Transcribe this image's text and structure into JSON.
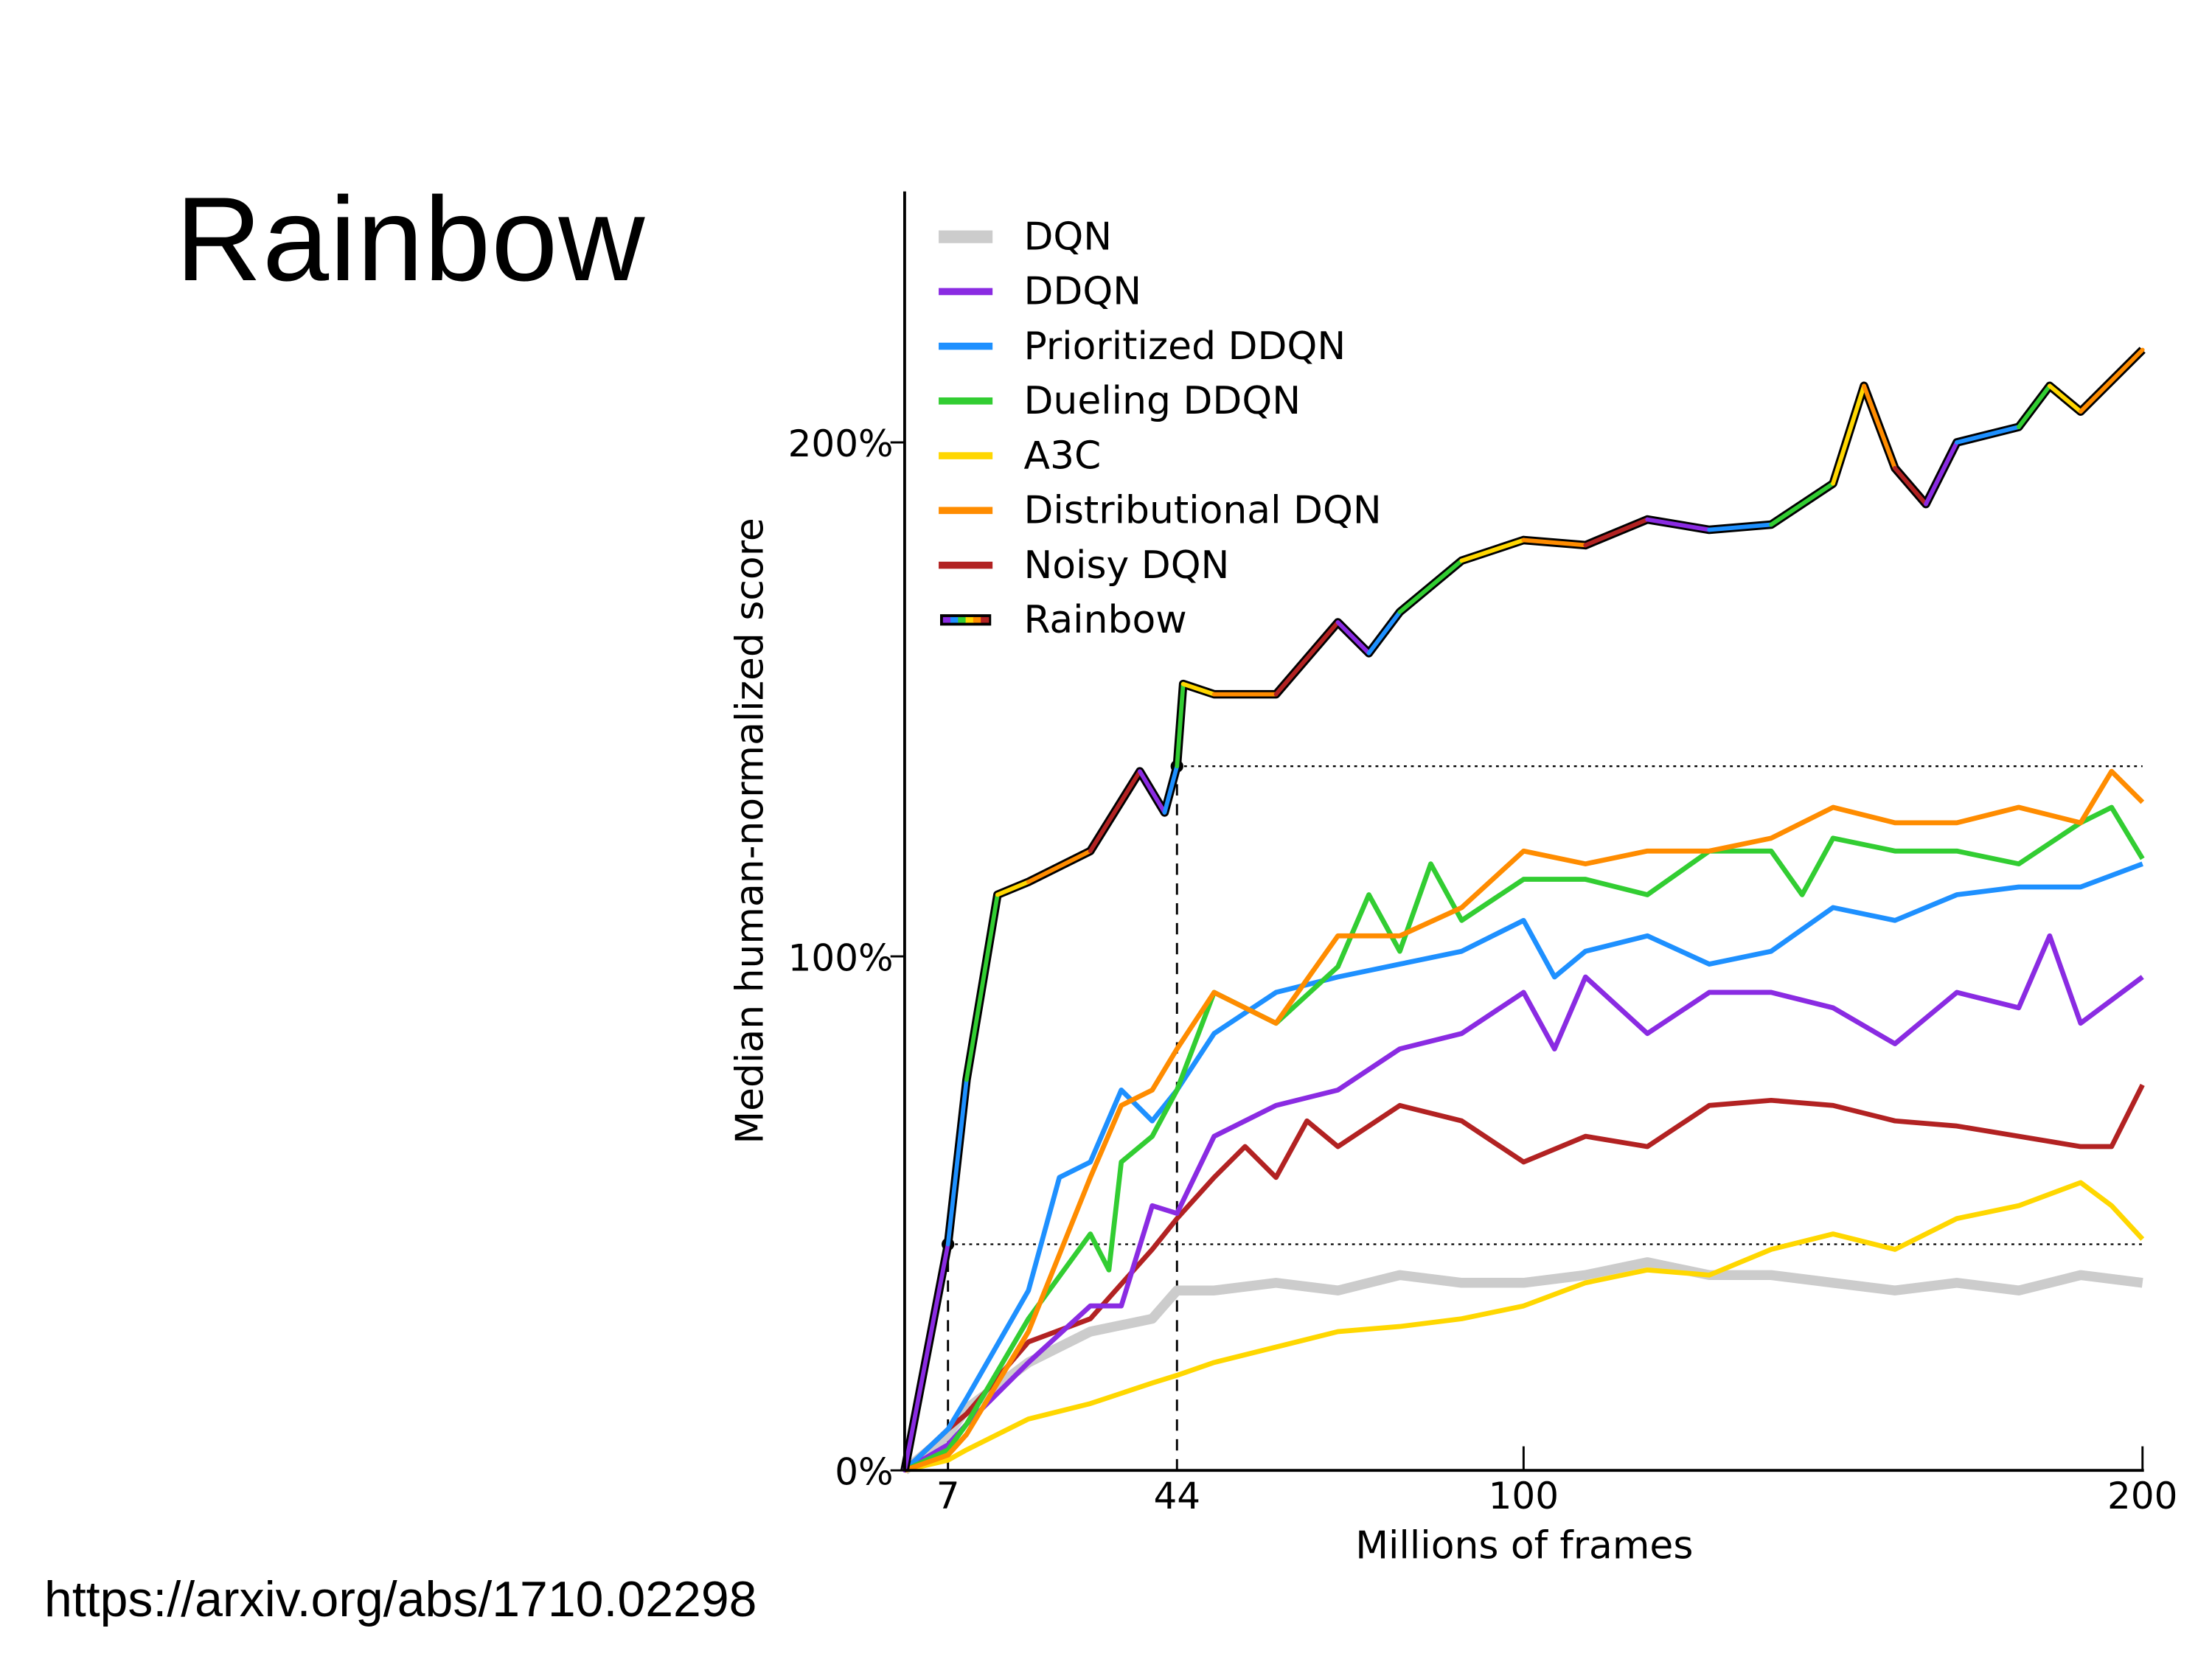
{
  "slide": {
    "title": "Rainbow",
    "source": "https://arxiv.org/abs/1710.02298"
  },
  "chart_data": {
    "type": "line",
    "title": "",
    "xlabel": "Millions of frames",
    "ylabel": "Median human-normalized score",
    "xlim": [
      0,
      200
    ],
    "ylim": [
      0,
      230
    ],
    "xticks": [
      7,
      44,
      100,
      200
    ],
    "xtick_labels": [
      "7",
      "44",
      "100",
      "200"
    ],
    "yticks": [
      0,
      100,
      200
    ],
    "ytick_labels": [
      "0%",
      "100%",
      "200%"
    ],
    "grid": false,
    "legend_position": "top-left",
    "reference_lines": [
      {
        "x": 7,
        "y": 44,
        "note_point": true
      },
      {
        "x": 44,
        "y": 137,
        "note_point": true
      }
    ],
    "series": [
      {
        "name": "DQN",
        "color": "#cccccc",
        "x": [
          0,
          7,
          10,
          20,
          30,
          40,
          44,
          50,
          60,
          70,
          80,
          90,
          100,
          110,
          120,
          130,
          140,
          150,
          160,
          170,
          180,
          190,
          200
        ],
        "y": [
          0,
          7,
          12,
          21,
          27,
          29.5,
          35,
          35,
          36.5,
          35,
          38,
          36.5,
          36.5,
          38,
          40.5,
          38,
          38,
          36.5,
          35,
          36.5,
          35,
          38,
          36.5
        ]
      },
      {
        "name": "DDQN",
        "color": "#8a2be2",
        "x": [
          0,
          7,
          10,
          20,
          30,
          35,
          40,
          44,
          50,
          55,
          60,
          70,
          80,
          90,
          100,
          105,
          110,
          120,
          130,
          140,
          150,
          160,
          170,
          180,
          185,
          190,
          200
        ],
        "y": [
          0,
          5,
          9,
          21,
          32,
          32,
          51.5,
          50,
          65,
          68,
          71,
          74,
          82,
          85,
          93,
          82,
          96,
          85,
          93,
          93,
          90,
          83,
          93,
          90,
          104,
          87,
          96
        ]
      },
      {
        "name": "Prioritized DDQN",
        "color": "#1e90ff",
        "x": [
          0,
          7,
          10,
          20,
          25,
          30,
          35,
          40,
          44,
          50,
          60,
          70,
          80,
          90,
          100,
          105,
          110,
          120,
          130,
          140,
          150,
          160,
          170,
          180,
          190,
          200
        ],
        "y": [
          0,
          8,
          14,
          35,
          57,
          60,
          74,
          68,
          74,
          85,
          93,
          96,
          98.5,
          101,
          107,
          96,
          101,
          104,
          98.5,
          101,
          109.5,
          107,
          112,
          113.5,
          113.5,
          118
        ]
      },
      {
        "name": "Dueling DDQN",
        "color": "#32cd32",
        "x": [
          0,
          7,
          10,
          20,
          30,
          33,
          35,
          40,
          44,
          50,
          60,
          70,
          75,
          80,
          85,
          90,
          100,
          110,
          120,
          130,
          140,
          145,
          150,
          160,
          170,
          180,
          190,
          195,
          200
        ],
        "y": [
          0,
          4,
          9,
          29.5,
          46,
          39,
          60,
          65,
          74,
          93,
          87,
          98,
          112,
          101,
          118,
          107,
          115,
          115,
          112,
          120.5,
          120.5,
          112,
          123,
          120.5,
          120.5,
          118,
          126,
          129,
          119
        ]
      },
      {
        "name": "A3C",
        "color": "#ffd700",
        "x": [
          0,
          7,
          10,
          20,
          30,
          40,
          44,
          50,
          60,
          70,
          80,
          90,
          100,
          110,
          120,
          130,
          140,
          150,
          160,
          170,
          180,
          190,
          195,
          200
        ],
        "y": [
          0,
          2,
          4,
          10,
          13,
          17,
          18.5,
          21,
          24,
          27,
          28,
          29.5,
          32,
          36.5,
          39,
          38,
          43,
          46,
          43,
          49,
          51.5,
          56,
          51.5,
          45
        ]
      },
      {
        "name": "Distributional DQN",
        "color": "#ff8c00",
        "x": [
          0,
          7,
          10,
          20,
          30,
          35,
          40,
          44,
          50,
          60,
          70,
          80,
          90,
          100,
          110,
          120,
          130,
          140,
          150,
          160,
          170,
          180,
          190,
          195,
          200
        ],
        "y": [
          0,
          3,
          7,
          27,
          57,
          71,
          74,
          82,
          93,
          87,
          104,
          104,
          109.5,
          120.5,
          118,
          120.5,
          120.5,
          123,
          129,
          126,
          126,
          129,
          126,
          136,
          130
        ]
      },
      {
        "name": "Noisy DQN",
        "color": "#b22222",
        "x": [
          0,
          7,
          10,
          20,
          30,
          40,
          44,
          50,
          55,
          60,
          65,
          70,
          80,
          90,
          100,
          110,
          120,
          130,
          140,
          150,
          160,
          170,
          180,
          190,
          195,
          200
        ],
        "y": [
          0,
          8,
          11,
          25,
          29.5,
          43,
          49,
          57,
          63,
          57,
          68,
          63,
          71,
          68,
          60,
          65,
          63,
          71,
          72,
          71,
          68,
          67,
          65,
          63,
          63,
          75
        ]
      },
      {
        "name": "Rainbow",
        "color": "multicolor",
        "x": [
          0,
          7,
          10,
          15,
          20,
          30,
          38,
          42,
          44,
          45,
          50,
          60,
          70,
          75,
          80,
          90,
          100,
          110,
          120,
          130,
          140,
          150,
          155,
          160,
          165,
          170,
          180,
          185,
          190,
          200
        ],
        "y": [
          0,
          44,
          76,
          112,
          114.5,
          120.5,
          136,
          128,
          137,
          153,
          151,
          151,
          165,
          159,
          167,
          177,
          181,
          180,
          185,
          183,
          184,
          192,
          211,
          195,
          188,
          200,
          203,
          211,
          206,
          218
        ]
      }
    ]
  }
}
